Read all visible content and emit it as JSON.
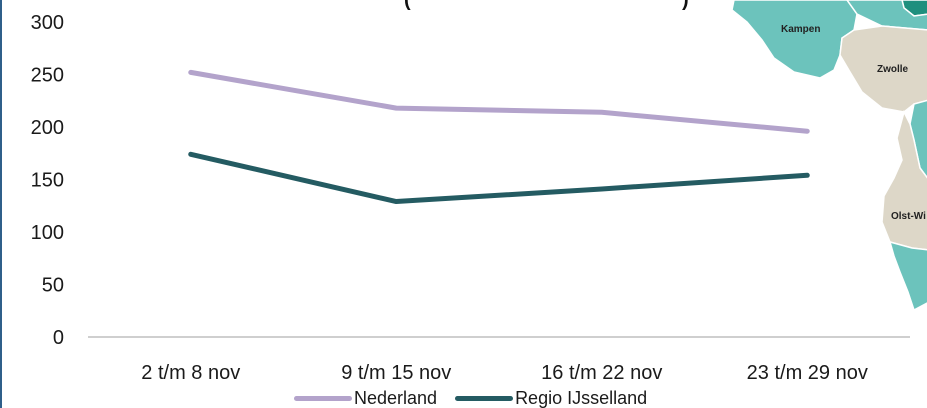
{
  "title_fragment": "(",
  "title_fragment_end": ")",
  "map": {
    "labels": [
      "Kampen",
      "Zwolle",
      "Olst-Wi"
    ],
    "colors": {
      "teal": "#6cc3bc",
      "dark_teal": "#1f8f7e",
      "beige": "#ddd7c8"
    }
  },
  "chart_data": {
    "type": "line",
    "categories": [
      "2 t/m 8 nov",
      "9 t/m 15 nov",
      "16 t/m 22 nov",
      "23 t/m 29 nov"
    ],
    "series": [
      {
        "name": "Nederland",
        "values": [
          252,
          218,
          214,
          196
        ],
        "color": "#b3a3cb"
      },
      {
        "name": "Regio IJsselland",
        "values": [
          174,
          129,
          141,
          154
        ],
        "color": "#245b62"
      }
    ],
    "yticks": [
      0,
      50,
      100,
      150,
      200,
      250,
      300
    ],
    "ylim": [
      0,
      300
    ],
    "grid": false,
    "legend_position": "bottom"
  }
}
